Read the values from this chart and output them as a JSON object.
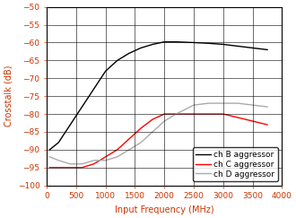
{
  "title": "",
  "xlabel": "Input Frequency (MHz)",
  "ylabel": "Crosstalk (dB)",
  "xlim": [
    0,
    4000
  ],
  "ylim": [
    -100,
    -50
  ],
  "yticks": [
    -100,
    -95,
    -90,
    -85,
    -80,
    -75,
    -70,
    -65,
    -60,
    -55,
    -50
  ],
  "xticks": [
    0,
    500,
    1000,
    1500,
    2000,
    2500,
    3000,
    3500,
    4000
  ],
  "ch_B": {
    "x": [
      50,
      200,
      400,
      600,
      800,
      1000,
      1200,
      1400,
      1600,
      1800,
      2000,
      2200,
      2500,
      2750,
      3000,
      3250,
      3500,
      3750
    ],
    "y": [
      -90,
      -88,
      -83,
      -78,
      -73,
      -68,
      -65,
      -63,
      -61.5,
      -60.5,
      -59.8,
      -59.8,
      -60,
      -60.2,
      -60.5,
      -61,
      -61.5,
      -62
    ],
    "color": "#000000",
    "label": "ch B aggressor"
  },
  "ch_C": {
    "x": [
      50,
      200,
      400,
      600,
      800,
      1000,
      1200,
      1400,
      1600,
      1800,
      2000,
      2200,
      2500,
      2750,
      3000,
      3250,
      3500,
      3750
    ],
    "y": [
      -95,
      -95,
      -95,
      -95,
      -94,
      -92,
      -90,
      -87,
      -84,
      -81.5,
      -80,
      -80,
      -80,
      -80,
      -80,
      -81,
      -82,
      -83
    ],
    "color": "#ff0000",
    "label": "ch C aggressor"
  },
  "ch_D": {
    "x": [
      50,
      200,
      400,
      600,
      800,
      1000,
      1200,
      1400,
      1600,
      1800,
      2000,
      2200,
      2500,
      2750,
      3000,
      3250,
      3500,
      3750
    ],
    "y": [
      -92,
      -93,
      -94,
      -94,
      -93,
      -93,
      -92,
      -90,
      -88,
      -85,
      -82,
      -80,
      -77.5,
      -77,
      -77,
      -77,
      -77.5,
      -78
    ],
    "color": "#aaaaaa",
    "label": "ch D aggressor"
  },
  "legend_loc": "lower right",
  "grid_color": "#000000",
  "line_width": 1.0,
  "font_color": "#cc3300",
  "label_fontsize": 7,
  "tick_fontsize": 6.5,
  "legend_fontsize": 6.5
}
